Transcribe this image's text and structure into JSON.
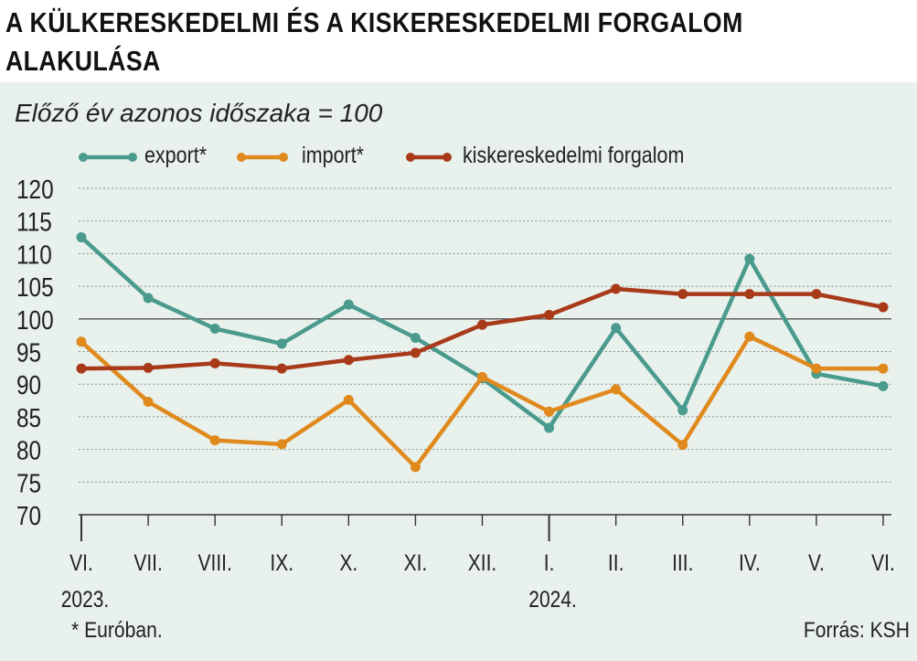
{
  "title": "A KÜLKERESKEDELMI ÉS A KISKERESKEDELMI FORGALOM ALAKULÁSA",
  "chart_data": {
    "type": "line",
    "subtitle": "Előző év azonos időszaka = 100",
    "categories": [
      "VI.",
      "VII.",
      "VIII.",
      "IX.",
      "X.",
      "XI.",
      "XII.",
      "I.",
      "II.",
      "III.",
      "IV.",
      "V.",
      "VI."
    ],
    "year_labels": [
      {
        "text": "2023.",
        "index": 0
      },
      {
        "text": "2024.",
        "index": 7
      }
    ],
    "ylim": [
      70,
      120
    ],
    "yticks": [
      70,
      75,
      80,
      85,
      90,
      95,
      100,
      105,
      110,
      115,
      120
    ],
    "reference_line": 100,
    "grid": true,
    "legend_position": "top-left",
    "series": [
      {
        "name": "export*",
        "color": "#4a9a8e",
        "values": [
          112.5,
          103.2,
          98.5,
          96.2,
          102.2,
          97.1,
          90.9,
          83.3,
          98.6,
          86.0,
          109.2,
          91.6,
          89.7
        ]
      },
      {
        "name": "import*",
        "color": "#e08a1e",
        "values": [
          96.5,
          87.3,
          81.4,
          80.8,
          87.6,
          77.3,
          91.1,
          85.8,
          89.2,
          80.7,
          97.3,
          92.4,
          92.4
        ]
      },
      {
        "name": "kiskereskedelmi forgalom",
        "color": "#a83a1a",
        "values": [
          92.4,
          92.5,
          93.2,
          92.4,
          93.7,
          94.8,
          99.1,
          100.6,
          104.6,
          103.8,
          103.8,
          103.8,
          101.8
        ]
      }
    ],
    "footnote": "* Euróban.",
    "source": "Forrás: KSH"
  }
}
